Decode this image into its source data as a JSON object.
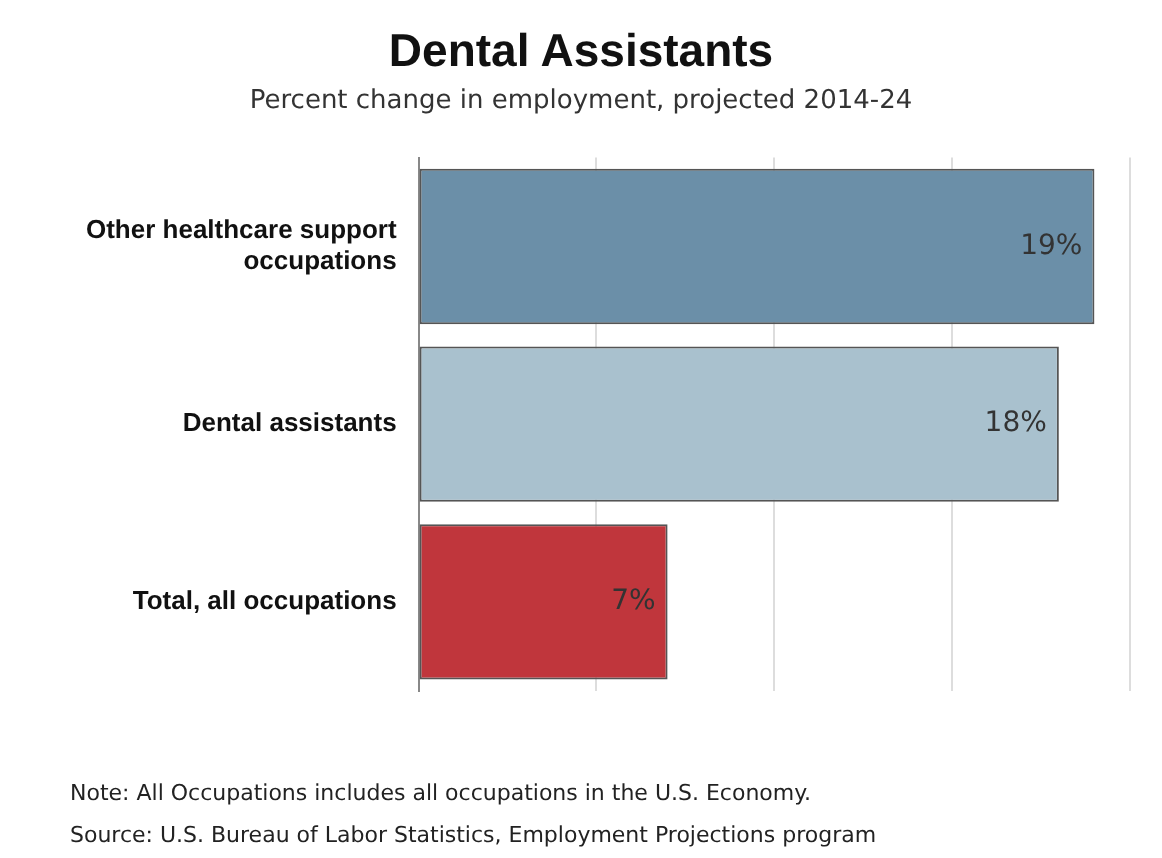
{
  "chart_data": {
    "type": "bar",
    "orientation": "horizontal",
    "title": "Dental Assistants",
    "subtitle": "Percent change in employment, projected 2014-24",
    "categories": [
      "Other healthcare support occupations",
      "Dental assistants",
      "Total, all occupations"
    ],
    "values": [
      19,
      18,
      7
    ],
    "colors": [
      "#6b8fa8",
      "#a9c1ce",
      "#c0363c"
    ],
    "value_labels": [
      "19%",
      "18%",
      "7%"
    ],
    "xlim": [
      0,
      20
    ],
    "xticks": [
      {
        "value": 0,
        "label": null
      },
      {
        "value": 5,
        "label": null
      },
      {
        "value": 10,
        "label": null
      },
      {
        "value": 15,
        "label": null
      },
      {
        "value": 20,
        "label": null
      }
    ],
    "grid": "x",
    "tick_labels": "y",
    "legend": false,
    "annotations": [
      "Note: All Occupations includes all occupations in the U.S. Economy.",
      "Source: U.S. Bureau of Labor Statistics, Employment Projections program"
    ]
  }
}
